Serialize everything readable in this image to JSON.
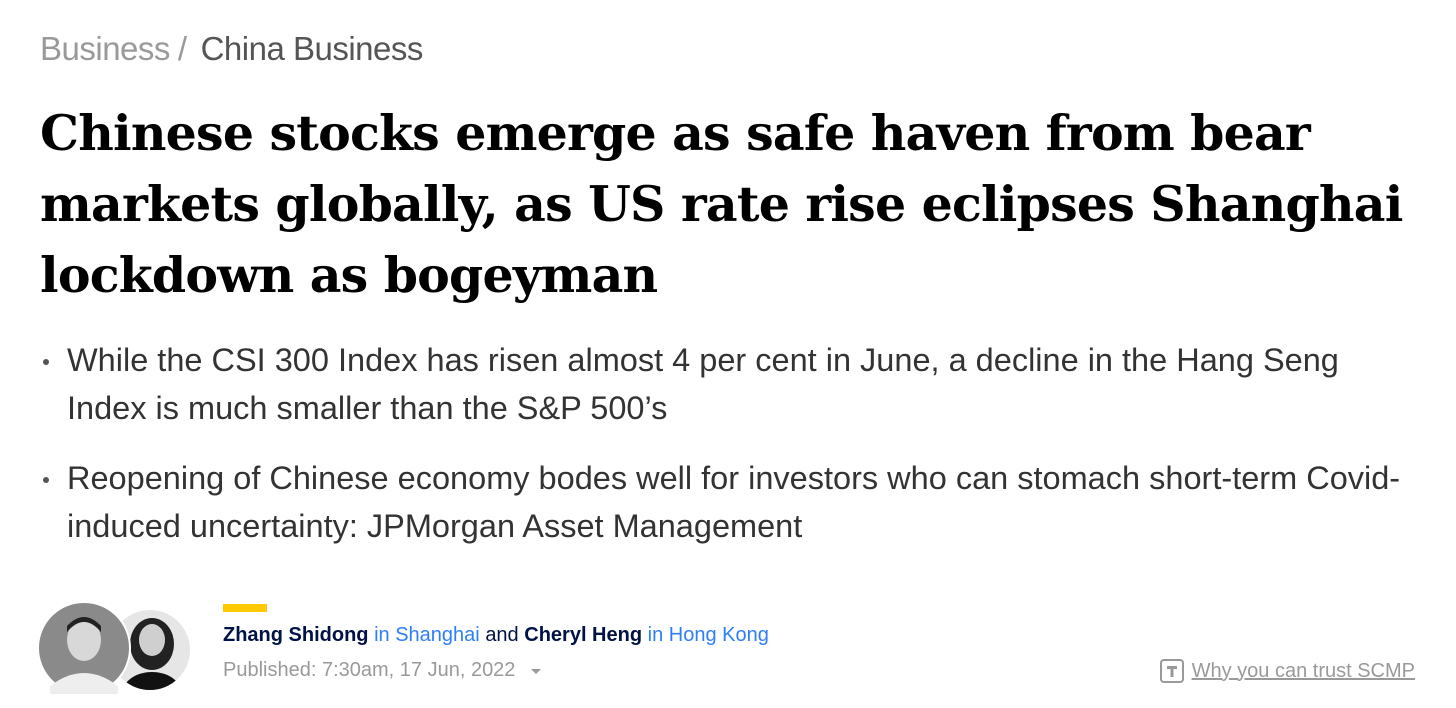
{
  "breadcrumb": {
    "items": [
      "Business",
      "China Business"
    ],
    "separator": "/"
  },
  "headline": "Chinese stocks emerge as safe haven from bear markets globally, as US rate rise eclipses Shanghai lockdown as bogeyman",
  "bullets": [
    "While the CSI 300 Index has risen almost 4 per cent in June, a decline in the Hang Seng Index is much smaller than the S&P 500’s",
    "Reopening of Chinese economy bodes well for investors who can stomach short-term Covid-induced uncertainty: JPMorgan Asset Management"
  ],
  "byline": {
    "authors": [
      {
        "name": "Zhang Shidong",
        "location": "in Shanghai"
      },
      {
        "name": "Cheryl Heng",
        "location": "in Hong Kong"
      }
    ],
    "conjunction": "and",
    "published": "Published: 7:30am, 17 Jun, 2022",
    "trust_link": "Why you can trust SCMP"
  }
}
